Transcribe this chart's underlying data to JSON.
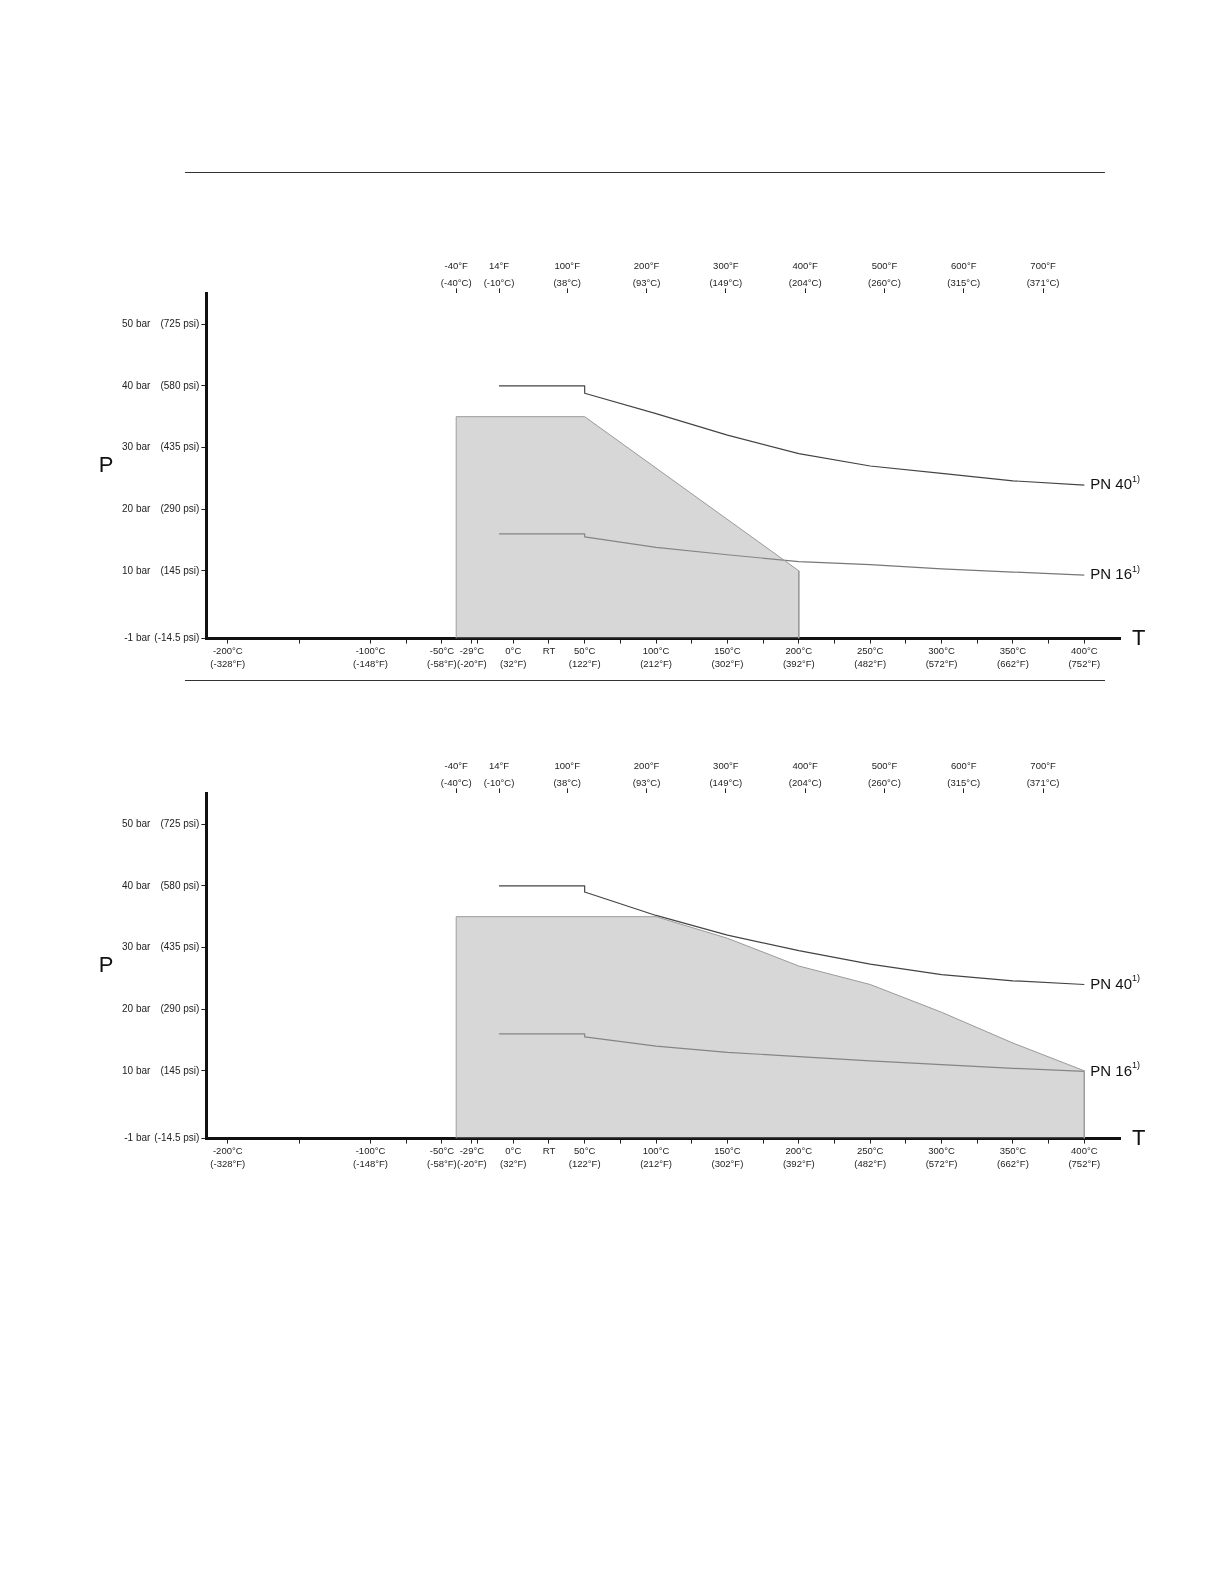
{
  "chart_data": [
    {
      "type": "line",
      "xlabel": "T",
      "ylabel": "P",
      "xlim": [
        -215,
        425
      ],
      "ylim": [
        -1,
        55
      ],
      "xticks": [
        {
          "value": -200,
          "label": "-200°C"
        },
        {
          "value": -150,
          "label": null
        },
        {
          "value": -100,
          "label": "-100°C"
        },
        {
          "value": -75,
          "label": null
        },
        {
          "value": -50,
          "label": "-50°C"
        },
        {
          "value": -29,
          "label": "-29°C"
        },
        {
          "value": -25,
          "label": null
        },
        {
          "value": 0,
          "label": "0°C"
        },
        {
          "value": 25,
          "label": "RT"
        },
        {
          "value": 50,
          "label": "50°C"
        },
        {
          "value": 75,
          "label": null
        },
        {
          "value": 100,
          "label": "100°C"
        },
        {
          "value": 125,
          "label": null
        },
        {
          "value": 150,
          "label": "150°C"
        },
        {
          "value": 175,
          "label": null
        },
        {
          "value": 200,
          "label": "200°C"
        },
        {
          "value": 225,
          "label": null
        },
        {
          "value": 250,
          "label": "250°C"
        },
        {
          "value": 275,
          "label": null
        },
        {
          "value": 300,
          "label": "300°C"
        },
        {
          "value": 325,
          "label": null
        },
        {
          "value": 350,
          "label": "350°C"
        },
        {
          "value": 375,
          "label": null
        },
        {
          "value": 400,
          "label": "400°C"
        }
      ],
      "x2lim": [
        -355,
        797
      ],
      "x2ticks": [
        {
          "value": -40,
          "label": "-40°F"
        },
        {
          "value": 14,
          "label": "14°F"
        },
        {
          "value": 100,
          "label": "100°F"
        },
        {
          "value": 200,
          "label": "200°F"
        },
        {
          "value": 300,
          "label": "300°F"
        },
        {
          "value": 400,
          "label": "400°F"
        },
        {
          "value": 500,
          "label": "500°F"
        },
        {
          "value": 600,
          "label": "600°F"
        },
        {
          "value": 700,
          "label": "700°F"
        }
      ],
      "yticks": [
        {
          "value": -1,
          "label": "-1 bar"
        },
        {
          "value": 10,
          "label": "10 bar"
        },
        {
          "value": 20,
          "label": "20 bar"
        },
        {
          "value": 30,
          "label": "30 bar"
        },
        {
          "value": 40,
          "label": "40 bar"
        },
        {
          "value": 50,
          "label": "50 bar"
        }
      ],
      "y2lim": [
        -14.5,
        797.7
      ],
      "y2ticks": [
        {
          "value": -14.5,
          "label": "(-14.5 psi)"
        },
        {
          "value": 145,
          "label": "(145 psi)"
        },
        {
          "value": 290,
          "label": "(290 psi)"
        },
        {
          "value": 435,
          "label": "(435 psi)"
        },
        {
          "value": 580,
          "label": "(580 psi)"
        },
        {
          "value": 725,
          "label": "(725 psi)"
        }
      ],
      "annotations": [
        "(-328°F)",
        "(-148°F)",
        "(-58°F)",
        "(-20°F)",
        "(32°F)",
        "(122°F)",
        "(212°F)",
        "(302°F)",
        "(392°F)",
        "(482°F)",
        "(572°F)",
        "(662°F)",
        "(752°F)",
        "(-40°C)",
        "(-10°C)",
        "(38°C)",
        "(93°C)",
        "(149°C)",
        "(204°C)",
        "(260°C)",
        "(315°C)",
        "(371°C)"
      ],
      "grid": false,
      "legend": false,
      "marker": "none",
      "series": [
        {
          "type": "area",
          "color": "#9a9a9a",
          "x": [
            -40,
            -40,
            50,
            200,
            200
          ],
          "values": [
            -1,
            35,
            35,
            10,
            -1
          ]
        },
        {
          "name": "PN 40$^{1)}$",
          "color": "#444444",
          "x": [
            -10,
            50,
            50,
            100,
            150,
            200,
            250,
            300,
            350,
            400
          ],
          "values": [
            40,
            40,
            38.8,
            35.5,
            32,
            29,
            27,
            25.8,
            24.6,
            23.9
          ]
        },
        {
          "name": "PN 16$^{1)}$",
          "color": "#777777",
          "x": [
            -10,
            50,
            50,
            100,
            150,
            200,
            250,
            300,
            350,
            400
          ],
          "values": [
            16,
            16,
            15.5,
            13.8,
            12.6,
            11.5,
            11,
            10.3,
            9.8,
            9.3
          ]
        }
      ]
    },
    {
      "type": "line",
      "xlabel": "T",
      "ylabel": "P",
      "xlim": [
        -215,
        425
      ],
      "ylim": [
        -1,
        55
      ],
      "xticks": [
        {
          "value": -200,
          "label": "-200°C"
        },
        {
          "value": -150,
          "label": null
        },
        {
          "value": -100,
          "label": "-100°C"
        },
        {
          "value": -75,
          "label": null
        },
        {
          "value": -50,
          "label": "-50°C"
        },
        {
          "value": -29,
          "label": "-29°C"
        },
        {
          "value": -25,
          "label": null
        },
        {
          "value": 0,
          "label": "0°C"
        },
        {
          "value": 25,
          "label": "RT"
        },
        {
          "value": 50,
          "label": "50°C"
        },
        {
          "value": 75,
          "label": null
        },
        {
          "value": 100,
          "label": "100°C"
        },
        {
          "value": 125,
          "label": null
        },
        {
          "value": 150,
          "label": "150°C"
        },
        {
          "value": 175,
          "label": null
        },
        {
          "value": 200,
          "label": "200°C"
        },
        {
          "value": 225,
          "label": null
        },
        {
          "value": 250,
          "label": "250°C"
        },
        {
          "value": 275,
          "label": null
        },
        {
          "value": 300,
          "label": "300°C"
        },
        {
          "value": 325,
          "label": null
        },
        {
          "value": 350,
          "label": "350°C"
        },
        {
          "value": 375,
          "label": null
        },
        {
          "value": 400,
          "label": "400°C"
        }
      ],
      "x2lim": [
        -355,
        797
      ],
      "x2ticks": [
        {
          "value": -40,
          "label": "-40°F"
        },
        {
          "value": 14,
          "label": "14°F"
        },
        {
          "value": 100,
          "label": "100°F"
        },
        {
          "value": 200,
          "label": "200°F"
        },
        {
          "value": 300,
          "label": "300°F"
        },
        {
          "value": 400,
          "label": "400°F"
        },
        {
          "value": 500,
          "label": "500°F"
        },
        {
          "value": 600,
          "label": "600°F"
        },
        {
          "value": 700,
          "label": "700°F"
        }
      ],
      "yticks": [
        {
          "value": -1,
          "label": "-1 bar"
        },
        {
          "value": 10,
          "label": "10 bar"
        },
        {
          "value": 20,
          "label": "20 bar"
        },
        {
          "value": 30,
          "label": "30 bar"
        },
        {
          "value": 40,
          "label": "40 bar"
        },
        {
          "value": 50,
          "label": "50 bar"
        }
      ],
      "y2lim": [
        -14.5,
        797.7
      ],
      "y2ticks": [
        {
          "value": -14.5,
          "label": "(-14.5 psi)"
        },
        {
          "value": 145,
          "label": "(145 psi)"
        },
        {
          "value": 290,
          "label": "(290 psi)"
        },
        {
          "value": 435,
          "label": "(435 psi)"
        },
        {
          "value": 580,
          "label": "(580 psi)"
        },
        {
          "value": 725,
          "label": "(725 psi)"
        }
      ],
      "annotations": [
        "(-328°F)",
        "(-148°F)",
        "(-58°F)",
        "(-20°F)",
        "(32°F)",
        "(122°F)",
        "(212°F)",
        "(302°F)",
        "(392°F)",
        "(482°F)",
        "(572°F)",
        "(662°F)",
        "(752°F)",
        "(-40°C)",
        "(-10°C)",
        "(38°C)",
        "(93°C)",
        "(149°C)",
        "(204°C)",
        "(260°C)",
        "(315°C)",
        "(371°C)"
      ],
      "grid": false,
      "legend": false,
      "marker": "none",
      "series": [
        {
          "type": "area",
          "color": "#9a9a9a",
          "x": [
            -40,
            -40,
            100,
            150,
            200,
            250,
            300,
            350,
            400,
            400
          ],
          "values": [
            -1,
            35,
            35,
            31.5,
            27,
            24,
            19.5,
            14.5,
            10,
            -1
          ]
        },
        {
          "name": "PN 40$^{1)}$",
          "color": "#444444",
          "x": [
            -10,
            50,
            50,
            100,
            150,
            200,
            250,
            300,
            350,
            400
          ],
          "values": [
            40,
            40,
            39,
            35.2,
            32,
            29.5,
            27.3,
            25.6,
            24.6,
            24
          ]
        },
        {
          "name": "PN 16$^{1)}$",
          "color": "#777777",
          "x": [
            -10,
            50,
            50,
            100,
            150,
            200,
            250,
            300,
            350,
            400
          ],
          "values": [
            16,
            16,
            15.5,
            14,
            13,
            12.3,
            11.6,
            11,
            10.4,
            9.9
          ]
        }
      ]
    }
  ]
}
